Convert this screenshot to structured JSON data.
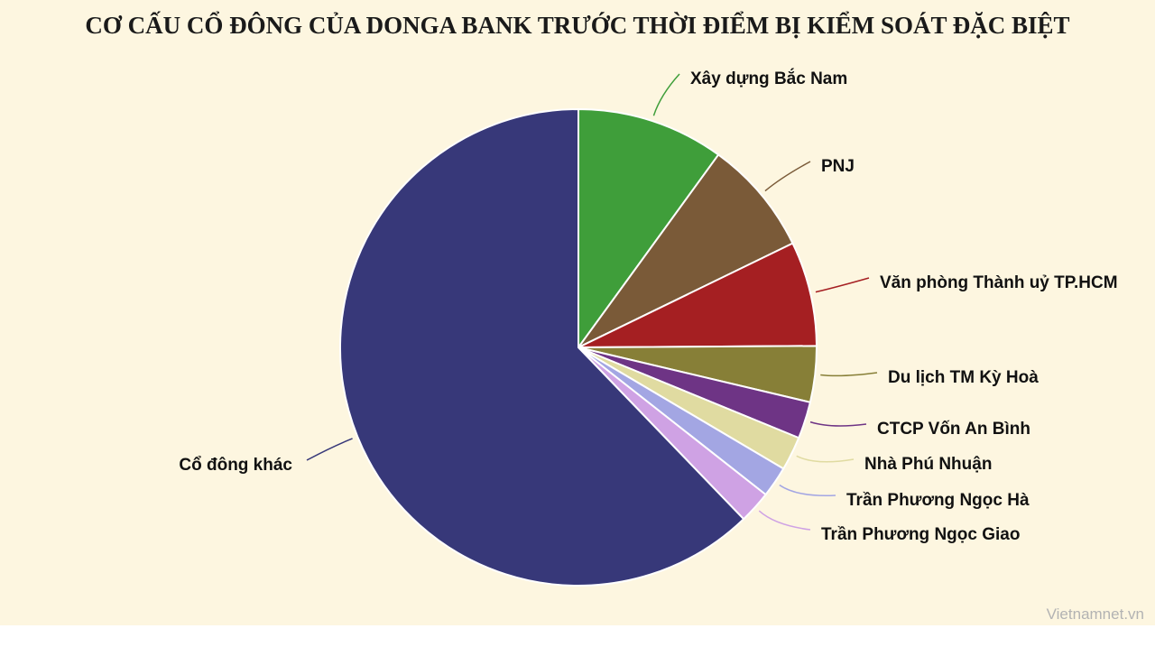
{
  "chart_data": {
    "type": "pie",
    "title": "CƠ CẤU CỔ ĐÔNG CỦA DONGA BANK TRƯỚC THỜI ĐIỂM BỊ KIỂM SOÁT ĐẶC BIỆT",
    "start_angle_deg": 0,
    "direction": "clockwise",
    "slices": [
      {
        "label": "Xây dựng Bắc Nam",
        "value": 10.0,
        "color": "#3f9e3a"
      },
      {
        "label": "PNJ",
        "value": 7.8,
        "color": "#7a5a38"
      },
      {
        "label": "Văn phòng Thành uỷ TP.HCM",
        "value": 7.1,
        "color": "#a51f22"
      },
      {
        "label": "Du lịch TM Kỳ Hoà",
        "value": 3.8,
        "color": "#877f37"
      },
      {
        "label": "CTCP Vốn An Bình",
        "value": 2.5,
        "color": "#6e3485"
      },
      {
        "label": "Nhà Phú Nhuận",
        "value": 2.3,
        "color": "#e0dba1"
      },
      {
        "label": "Trần Phương Ngọc Hà",
        "value": 2.1,
        "color": "#a3a6e3"
      },
      {
        "label": "Trần Phương Ngọc Giao",
        "value": 2.2,
        "color": "#cfa2e4"
      },
      {
        "label": "Cổ đông khác",
        "value": 62.2,
        "color": "#373879"
      }
    ]
  },
  "source": "Vietnamnet.vn"
}
